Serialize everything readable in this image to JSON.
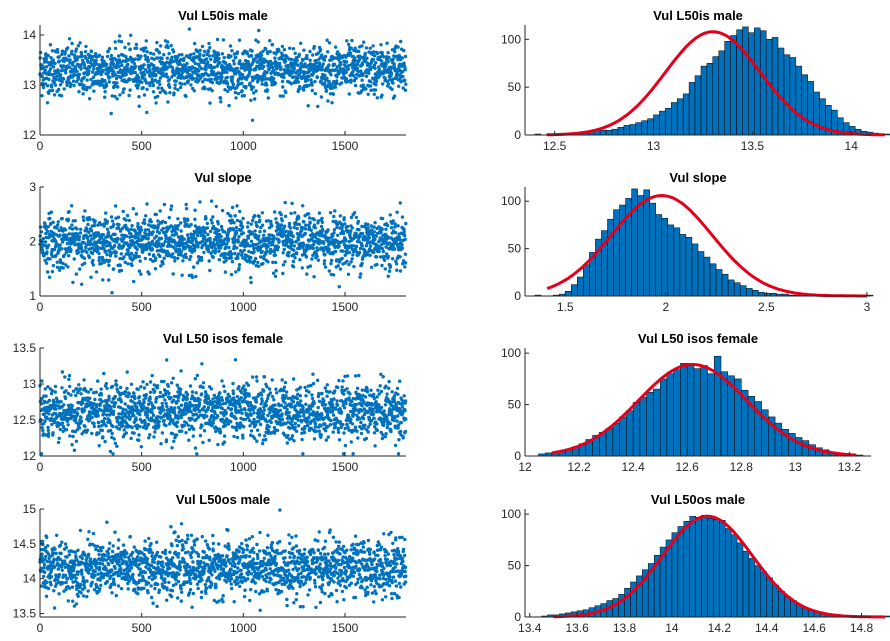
{
  "chart_data": [
    {
      "type": "scatter",
      "title": "Vul L50is male",
      "xlim": [
        0,
        1800
      ],
      "ylim": [
        12,
        14.2
      ],
      "xticks": [
        0,
        500,
        1000,
        1500
      ],
      "xtick_labels": [
        "0",
        "500",
        "1000",
        "1500"
      ],
      "yticks": [
        12,
        13,
        14
      ],
      "ytick_labels": [
        "12",
        "13",
        "14"
      ],
      "series_summary": {
        "n_points": 1800,
        "center": 13.3,
        "spread": 0.25
      },
      "marker_color": "#0072BD"
    },
    {
      "type": "bar",
      "title": "Vul L50is male",
      "xlim": [
        12.35,
        14.1
      ],
      "ylim": [
        0,
        115
      ],
      "xticks": [
        12.5,
        13,
        13.5,
        14
      ],
      "xtick_labels": [
        "12.5",
        "13",
        "13.5",
        "14"
      ],
      "yticks": [
        0,
        50,
        100
      ],
      "ytick_labels": [
        "0",
        "50",
        "100"
      ],
      "bin_start": 12.4,
      "bin_width": 0.03,
      "counts": [
        1,
        0,
        0,
        0,
        1,
        1,
        2,
        2,
        2,
        4,
        5,
        5,
        5,
        6,
        8,
        10,
        11,
        13,
        15,
        17,
        21,
        25,
        28,
        34,
        38,
        43,
        55,
        62,
        72,
        75,
        82,
        88,
        98,
        104,
        110,
        113,
        107,
        112,
        109,
        100,
        102,
        91,
        84,
        81,
        72,
        63,
        56,
        45,
        38,
        31,
        26,
        18,
        13,
        9,
        6,
        4,
        3,
        2,
        1,
        1
      ],
      "fit_color": "#E3001A",
      "bar_color": "#0072BD",
      "fit": {
        "mu": 13.3,
        "sigma": 0.24,
        "peak": 108
      }
    },
    {
      "type": "scatter",
      "title": "Vul slope",
      "xlim": [
        0,
        1800
      ],
      "ylim": [
        1,
        3
      ],
      "xticks": [
        0,
        500,
        1000,
        1500
      ],
      "xtick_labels": [
        "0",
        "500",
        "1000",
        "1500"
      ],
      "yticks": [
        1,
        2,
        3
      ],
      "ytick_labels": [
        "1",
        "2",
        "3"
      ],
      "series_summary": {
        "n_points": 1800,
        "center": 2.0,
        "spread": 0.25
      },
      "marker_color": "#0072BD"
    },
    {
      "type": "bar",
      "title": "Vul slope",
      "xlim": [
        1.3,
        3.02
      ],
      "ylim": [
        0,
        115
      ],
      "xticks": [
        1.5,
        2,
        2.5,
        3
      ],
      "xtick_labels": [
        "1.5",
        "2",
        "2.5",
        "3"
      ],
      "yticks": [
        0,
        50,
        100
      ],
      "ytick_labels": [
        "0",
        "50",
        "100"
      ],
      "bin_start": 1.35,
      "bin_width": 0.03,
      "counts": [
        1,
        0,
        0,
        1,
        2,
        5,
        12,
        20,
        33,
        46,
        60,
        69,
        81,
        91,
        96,
        103,
        113,
        106,
        112,
        98,
        86,
        82,
        75,
        72,
        65,
        62,
        55,
        47,
        41,
        34,
        28,
        23,
        17,
        14,
        11,
        8,
        6,
        4,
        3,
        3,
        2,
        2,
        1,
        1,
        0,
        0,
        0,
        0,
        0,
        0,
        0,
        0,
        0,
        0,
        0,
        1
      ],
      "fit_color": "#E3001A",
      "bar_color": "#0072BD",
      "fit": {
        "mu": 1.98,
        "sigma": 0.25,
        "peak": 106
      }
    },
    {
      "type": "scatter",
      "title": "Vul L50 isos female",
      "xlim": [
        0,
        1800
      ],
      "ylim": [
        12,
        13.5
      ],
      "xticks": [
        0,
        500,
        1000,
        1500
      ],
      "xtick_labels": [
        "0",
        "500",
        "1000",
        "1500"
      ],
      "yticks": [
        12,
        12.5,
        13,
        13.5
      ],
      "ytick_labels": [
        "12",
        "12.5",
        "13",
        "13.5"
      ],
      "series_summary": {
        "n_points": 1800,
        "center": 12.62,
        "spread": 0.2
      },
      "marker_color": "#0072BD"
    },
    {
      "type": "bar",
      "title": "Vul L50 isos female",
      "xlim": [
        12,
        13.28
      ],
      "ylim": [
        0,
        105
      ],
      "xticks": [
        12,
        12.2,
        12.4,
        12.6,
        12.8,
        13,
        13.2
      ],
      "xtick_labels": [
        "12",
        "12.2",
        "12.4",
        "12.6",
        "12.8",
        "13",
        "13.2"
      ],
      "yticks": [
        0,
        50,
        100
      ],
      "ytick_labels": [
        "0",
        "50",
        "100"
      ],
      "bin_start": 12.05,
      "bin_width": 0.025,
      "counts": [
        2,
        3,
        4,
        5,
        7,
        9,
        12,
        16,
        20,
        23,
        27,
        32,
        38,
        44,
        52,
        57,
        62,
        65,
        75,
        80,
        84,
        90,
        90,
        85,
        88,
        80,
        97,
        82,
        78,
        75,
        64,
        58,
        53,
        45,
        38,
        32,
        26,
        22,
        18,
        15,
        11,
        8,
        6,
        4,
        3,
        2,
        1,
        1
      ],
      "fit_color": "#E3001A",
      "bar_color": "#0072BD",
      "fit": {
        "mu": 12.62,
        "sigma": 0.2,
        "peak": 89
      }
    },
    {
      "type": "scatter",
      "title": "Vul L50os male",
      "xlim": [
        0,
        1800
      ],
      "ylim": [
        13.45,
        15
      ],
      "xticks": [
        0,
        500,
        1000,
        1500
      ],
      "xtick_labels": [
        "0",
        "500",
        "1000",
        "1500"
      ],
      "yticks": [
        13.5,
        14,
        14.5,
        15
      ],
      "ytick_labels": [
        "13.5",
        "14",
        "14.5",
        "15"
      ],
      "series_summary": {
        "n_points": 1800,
        "center": 14.15,
        "spread": 0.2
      },
      "marker_color": "#0072BD"
    },
    {
      "type": "bar",
      "title": "Vul L50os male",
      "xlim": [
        13.38,
        14.84
      ],
      "ylim": [
        0,
        105
      ],
      "xticks": [
        13.4,
        13.6,
        13.8,
        14,
        14.2,
        14.4,
        14.6,
        14.8
      ],
      "xtick_labels": [
        "13.4",
        "13.6",
        "13.8",
        "14",
        "14.2",
        "14.4",
        "14.6",
        "14.8"
      ],
      "yticks": [
        0,
        50,
        100
      ],
      "ytick_labels": [
        "0",
        "50",
        "100"
      ],
      "bin_start": 13.45,
      "bin_width": 0.025,
      "counts": [
        1,
        2,
        2,
        3,
        4,
        5,
        6,
        7,
        9,
        11,
        13,
        16,
        18,
        22,
        28,
        34,
        40,
        46,
        52,
        60,
        68,
        75,
        82,
        88,
        93,
        98,
        97,
        99,
        96,
        95,
        94,
        86,
        80,
        72,
        64,
        57,
        50,
        44,
        38,
        31,
        25,
        20,
        16,
        12,
        9,
        7,
        5,
        3,
        2,
        2,
        1,
        1,
        0,
        0,
        0,
        0,
        0,
        0,
        1
      ],
      "fit_color": "#E3001A",
      "bar_color": "#0072BD",
      "fit": {
        "mu": 14.15,
        "sigma": 0.19,
        "peak": 98
      }
    }
  ]
}
